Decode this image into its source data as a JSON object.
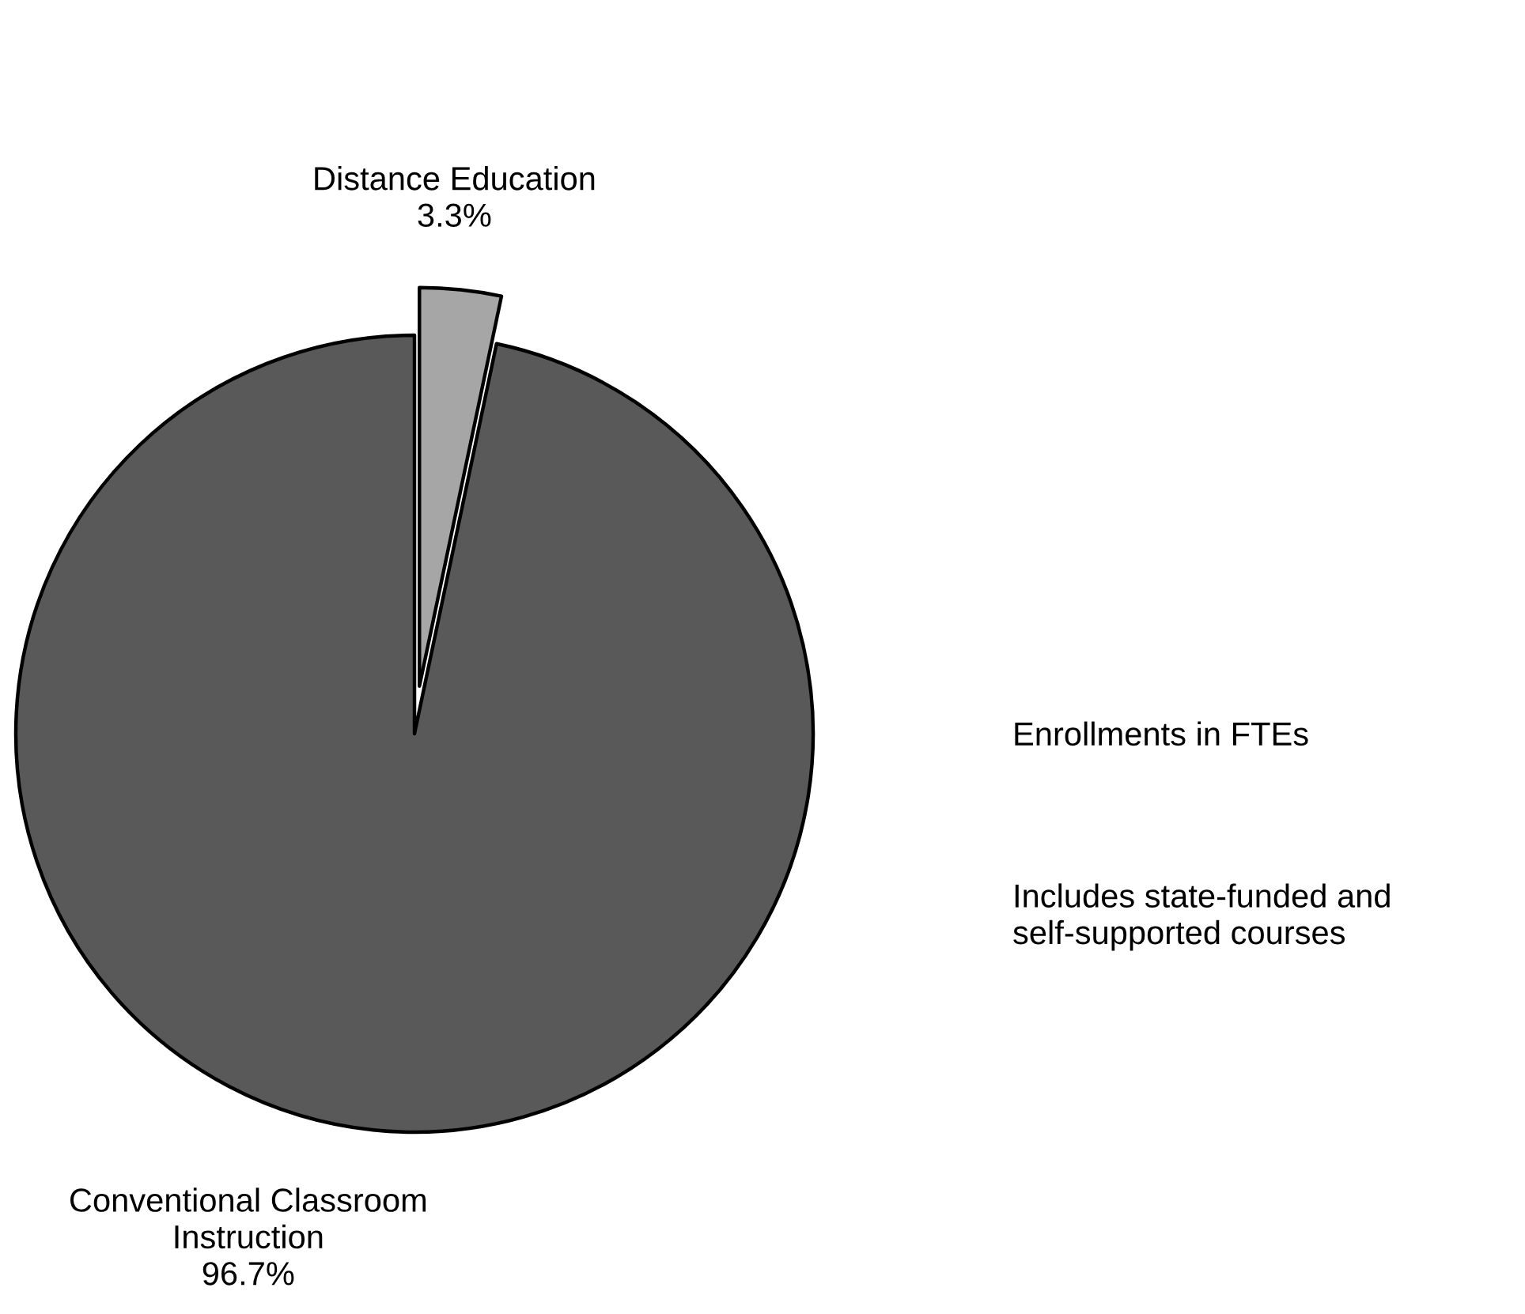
{
  "chart_data": {
    "type": "pie",
    "categories": [
      "Distance Education",
      "Conventional Classroom\nInstruction"
    ],
    "values": [
      3.3,
      96.7
    ],
    "value_labels": [
      "3.3%",
      "96.7%"
    ],
    "colors": [
      "#a6a6a6",
      "#595959"
    ],
    "annotations": [
      "Enrollments in FTEs",
      "Includes state-funded and\nself-supported courses"
    ],
    "legend": false
  }
}
